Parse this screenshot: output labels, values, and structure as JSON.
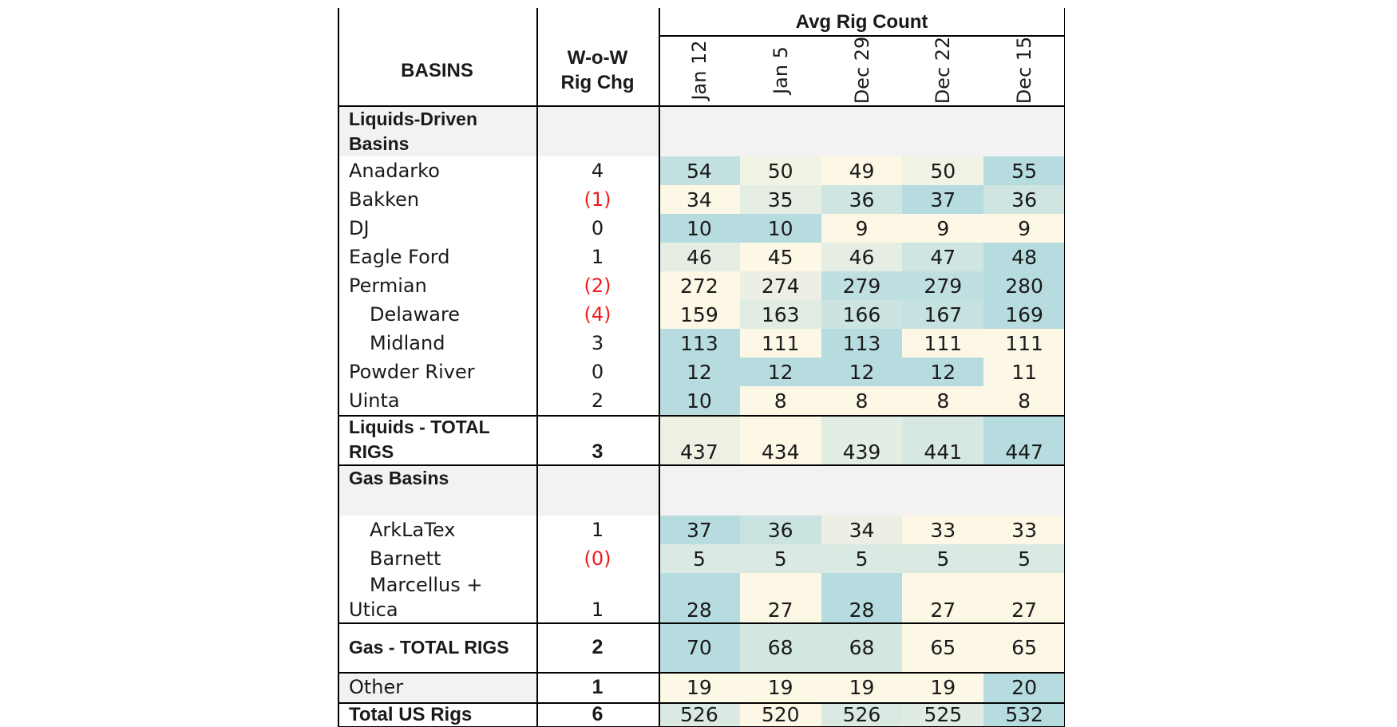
{
  "chart_data": {
    "type": "table",
    "title": "Avg Rig Count",
    "columns": {
      "basins": "BASINS",
      "wow_chg": "W-o-W Rig Chg"
    },
    "weeks": [
      "Jan 12",
      "Jan 5",
      "Dec 29",
      "Dec 22",
      "Dec 15"
    ],
    "rows": [
      {
        "kind": "section",
        "basin": "Liquids-Driven Basins"
      },
      {
        "kind": "data",
        "basin": "Anadarko",
        "chg": "4",
        "values": [
          54,
          50,
          49,
          50,
          55
        ]
      },
      {
        "kind": "data",
        "basin": "Bakken",
        "chg": "(1)",
        "values": [
          34,
          35,
          36,
          37,
          36
        ]
      },
      {
        "kind": "data",
        "basin": "DJ",
        "chg": "0",
        "values": [
          10,
          10,
          9,
          9,
          9
        ]
      },
      {
        "kind": "data",
        "basin": "Eagle Ford",
        "chg": "1",
        "values": [
          46,
          45,
          46,
          47,
          48
        ]
      },
      {
        "kind": "data",
        "basin": "Permian",
        "chg": "(2)",
        "values": [
          272,
          274,
          279,
          279,
          280
        ]
      },
      {
        "kind": "data",
        "basin": "Delaware",
        "chg": "(4)",
        "values": [
          159,
          163,
          166,
          167,
          169
        ],
        "indent": true
      },
      {
        "kind": "data",
        "basin": "Midland",
        "chg": "3",
        "values": [
          113,
          111,
          113,
          111,
          111
        ],
        "indent": true
      },
      {
        "kind": "data",
        "basin": "Powder River",
        "chg": "0",
        "values": [
          12,
          12,
          12,
          12,
          11
        ]
      },
      {
        "kind": "data",
        "basin": "Uinta",
        "chg": "2",
        "values": [
          10,
          8,
          8,
          8,
          8
        ]
      },
      {
        "kind": "total",
        "basin": "Liquids - TOTAL RIGS",
        "chg": "3",
        "values": [
          437,
          434,
          439,
          441,
          447
        ]
      },
      {
        "kind": "section",
        "basin": "Gas Basins"
      },
      {
        "kind": "data",
        "basin": "ArkLaTex",
        "chg": "1",
        "values": [
          37,
          36,
          34,
          33,
          33
        ],
        "indent": true
      },
      {
        "kind": "data",
        "basin": "Barnett",
        "chg": "(0)",
        "values": [
          5,
          5,
          5,
          5,
          5
        ],
        "indent": true
      },
      {
        "kind": "data",
        "basin": "Marcellus + Utica",
        "chg": "1",
        "values": [
          28,
          27,
          28,
          27,
          27
        ],
        "wrap": true
      },
      {
        "kind": "total",
        "basin": "Gas - TOTAL RIGS",
        "chg": "2",
        "values": [
          70,
          68,
          68,
          65,
          65
        ]
      },
      {
        "kind": "other",
        "basin": "Other",
        "chg": "1",
        "values": [
          19,
          19,
          19,
          19,
          20
        ]
      },
      {
        "kind": "grand",
        "basin": "Total US Rigs",
        "chg": "6",
        "values": [
          526,
          520,
          526,
          525,
          532
        ]
      }
    ],
    "heat_colors": {
      "low": "#fdf7e6",
      "high": "#b7dcdf"
    }
  }
}
